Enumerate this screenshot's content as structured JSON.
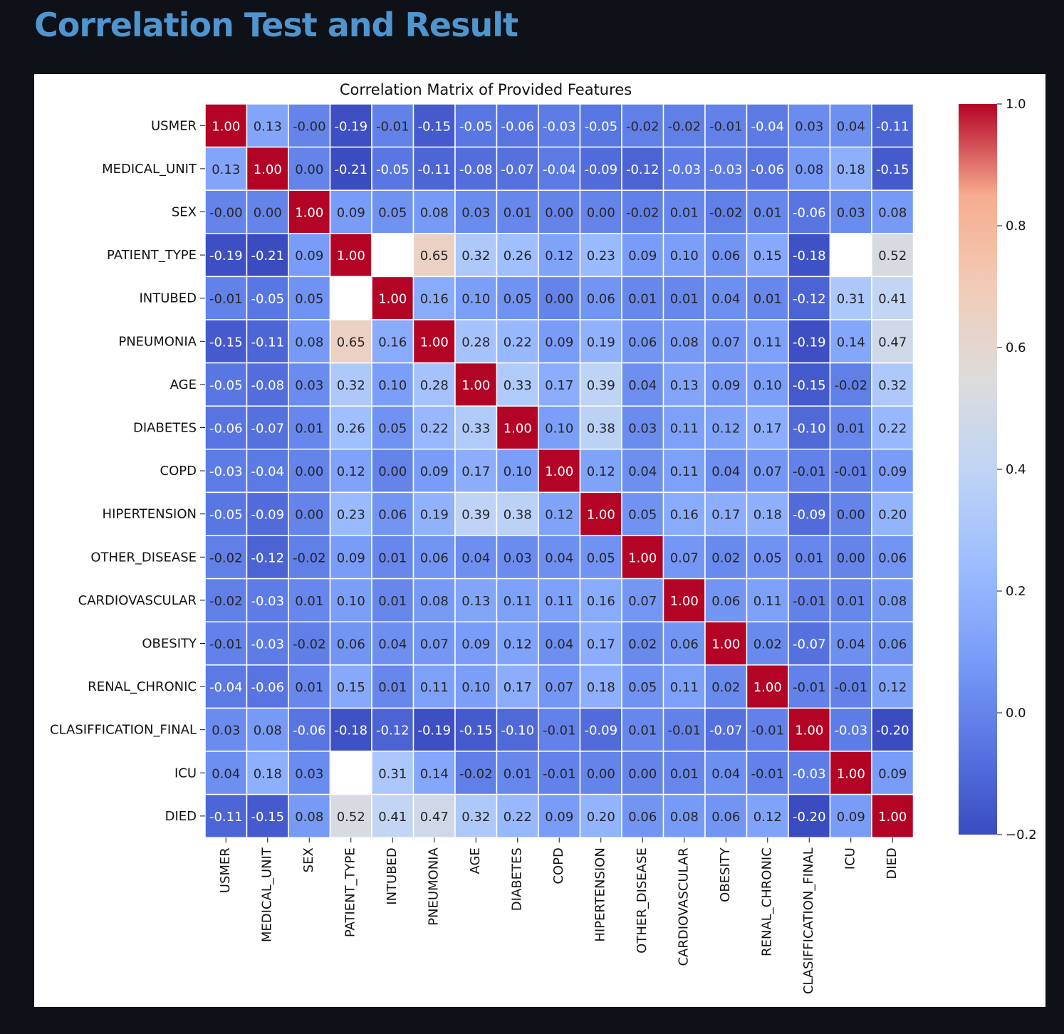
{
  "page": {
    "title": "Correlation Test and Result"
  },
  "chart_data": {
    "type": "heatmap",
    "title": "Correlation Matrix of Provided Features",
    "xlabel": "",
    "ylabel": "",
    "colormap": "coolwarm",
    "vmin": -0.2,
    "vmax": 1.0,
    "colorbar_ticks": [
      "−0.2",
      "0.0",
      "0.2",
      "0.4",
      "0.6",
      "0.8",
      "1.0"
    ],
    "colorbar_tick_values": [
      -0.2,
      0.0,
      0.2,
      0.4,
      0.6,
      0.8,
      1.0
    ],
    "cell_border_color": "#ffffff",
    "missing_color": "#ffffff",
    "labels": [
      "USMER",
      "MEDICAL_UNIT",
      "SEX",
      "PATIENT_TYPE",
      "INTUBED",
      "PNEUMONIA",
      "AGE",
      "DIABETES",
      "COPD",
      "HIPERTENSION",
      "OTHER_DISEASE",
      "CARDIOVASCULAR",
      "OBESITY",
      "RENAL_CHRONIC",
      "CLASIFFICATION_FINAL",
      "ICU",
      "DIED"
    ],
    "matrix": [
      [
        "1.00",
        "0.13",
        "-0.00",
        "-0.19",
        "-0.01",
        "-0.15",
        "-0.05",
        "-0.06",
        "-0.03",
        "-0.05",
        "-0.02",
        "-0.02",
        "-0.01",
        "-0.04",
        "0.03",
        "0.04",
        "-0.11"
      ],
      [
        "0.13",
        "1.00",
        "0.00",
        "-0.21",
        "-0.05",
        "-0.11",
        "-0.08",
        "-0.07",
        "-0.04",
        "-0.09",
        "-0.12",
        "-0.03",
        "-0.03",
        "-0.06",
        "0.08",
        "0.18",
        "-0.15"
      ],
      [
        "-0.00",
        "0.00",
        "1.00",
        "0.09",
        "0.05",
        "0.08",
        "0.03",
        "0.01",
        "0.00",
        "0.00",
        "-0.02",
        "0.01",
        "-0.02",
        "0.01",
        "-0.06",
        "0.03",
        "0.08"
      ],
      [
        "-0.19",
        "-0.21",
        "0.09",
        "1.00",
        null,
        "0.65",
        "0.32",
        "0.26",
        "0.12",
        "0.23",
        "0.09",
        "0.10",
        "0.06",
        "0.15",
        "-0.18",
        null,
        "0.52"
      ],
      [
        "-0.01",
        "-0.05",
        "0.05",
        null,
        "1.00",
        "0.16",
        "0.10",
        "0.05",
        "0.00",
        "0.06",
        "0.01",
        "0.01",
        "0.04",
        "0.01",
        "-0.12",
        "0.31",
        "0.41"
      ],
      [
        "-0.15",
        "-0.11",
        "0.08",
        "0.65",
        "0.16",
        "1.00",
        "0.28",
        "0.22",
        "0.09",
        "0.19",
        "0.06",
        "0.08",
        "0.07",
        "0.11",
        "-0.19",
        "0.14",
        "0.47"
      ],
      [
        "-0.05",
        "-0.08",
        "0.03",
        "0.32",
        "0.10",
        "0.28",
        "1.00",
        "0.33",
        "0.17",
        "0.39",
        "0.04",
        "0.13",
        "0.09",
        "0.10",
        "-0.15",
        "-0.02",
        "0.32"
      ],
      [
        "-0.06",
        "-0.07",
        "0.01",
        "0.26",
        "0.05",
        "0.22",
        "0.33",
        "1.00",
        "0.10",
        "0.38",
        "0.03",
        "0.11",
        "0.12",
        "0.17",
        "-0.10",
        "0.01",
        "0.22"
      ],
      [
        "-0.03",
        "-0.04",
        "0.00",
        "0.12",
        "0.00",
        "0.09",
        "0.17",
        "0.10",
        "1.00",
        "0.12",
        "0.04",
        "0.11",
        "0.04",
        "0.07",
        "-0.01",
        "-0.01",
        "0.09"
      ],
      [
        "-0.05",
        "-0.09",
        "0.00",
        "0.23",
        "0.06",
        "0.19",
        "0.39",
        "0.38",
        "0.12",
        "1.00",
        "0.05",
        "0.16",
        "0.17",
        "0.18",
        "-0.09",
        "0.00",
        "0.20"
      ],
      [
        "-0.02",
        "-0.12",
        "-0.02",
        "0.09",
        "0.01",
        "0.06",
        "0.04",
        "0.03",
        "0.04",
        "0.05",
        "1.00",
        "0.07",
        "0.02",
        "0.05",
        "0.01",
        "0.00",
        "0.06"
      ],
      [
        "-0.02",
        "-0.03",
        "0.01",
        "0.10",
        "0.01",
        "0.08",
        "0.13",
        "0.11",
        "0.11",
        "0.16",
        "0.07",
        "1.00",
        "0.06",
        "0.11",
        "-0.01",
        "0.01",
        "0.08"
      ],
      [
        "-0.01",
        "-0.03",
        "-0.02",
        "0.06",
        "0.04",
        "0.07",
        "0.09",
        "0.12",
        "0.04",
        "0.17",
        "0.02",
        "0.06",
        "1.00",
        "0.02",
        "-0.07",
        "0.04",
        "0.06"
      ],
      [
        "-0.04",
        "-0.06",
        "0.01",
        "0.15",
        "0.01",
        "0.11",
        "0.10",
        "0.17",
        "0.07",
        "0.18",
        "0.05",
        "0.11",
        "0.02",
        "1.00",
        "-0.01",
        "-0.01",
        "0.12"
      ],
      [
        "0.03",
        "0.08",
        "-0.06",
        "-0.18",
        "-0.12",
        "-0.19",
        "-0.15",
        "-0.10",
        "-0.01",
        "-0.09",
        "0.01",
        "-0.01",
        "-0.07",
        "-0.01",
        "1.00",
        "-0.03",
        "-0.20"
      ],
      [
        "0.04",
        "0.18",
        "0.03",
        null,
        "0.31",
        "0.14",
        "-0.02",
        "0.01",
        "-0.01",
        "0.00",
        "0.00",
        "0.01",
        "0.04",
        "-0.01",
        "-0.03",
        "1.00",
        "0.09"
      ],
      [
        "-0.11",
        "-0.15",
        "0.08",
        "0.52",
        "0.41",
        "0.47",
        "0.32",
        "0.22",
        "0.09",
        "0.20",
        "0.06",
        "0.08",
        "0.06",
        "0.12",
        "-0.20",
        "0.09",
        "1.00"
      ]
    ]
  }
}
